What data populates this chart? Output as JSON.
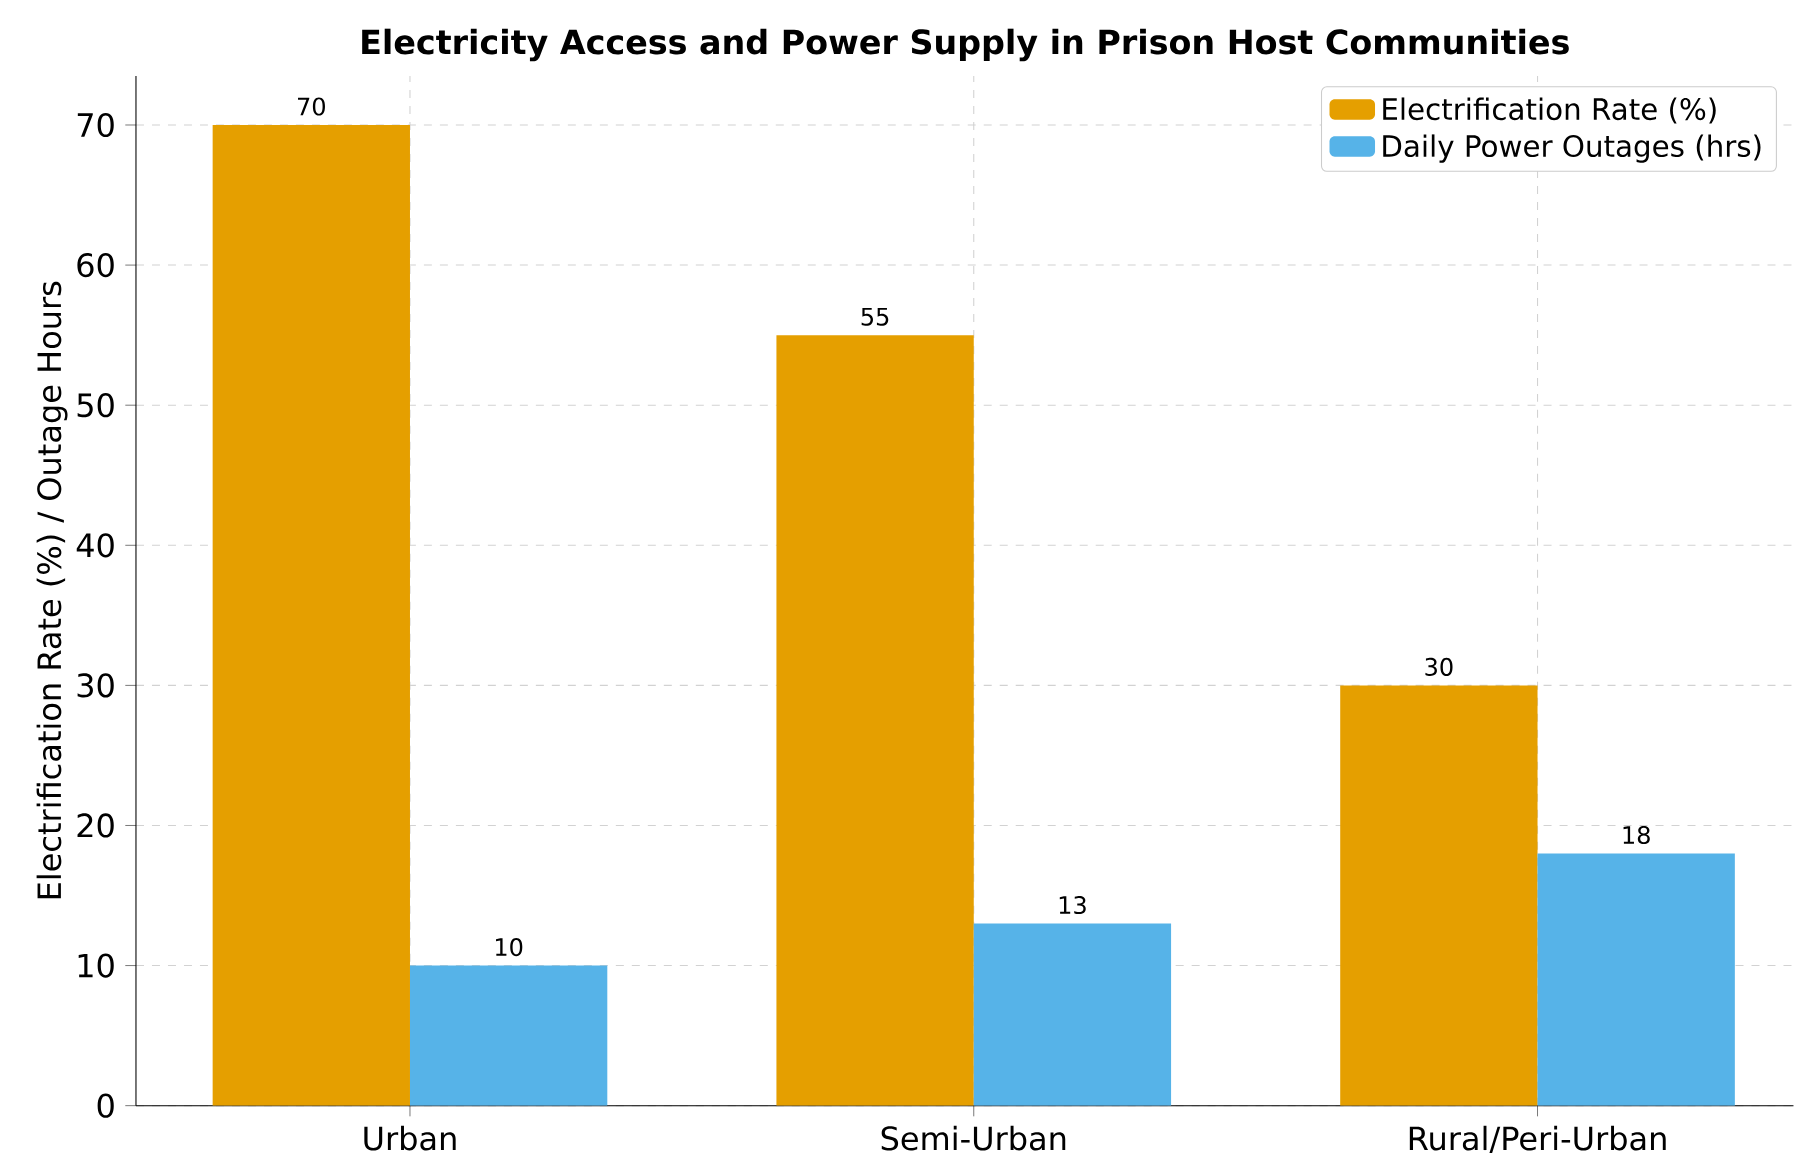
{
  "chart_data": {
    "type": "bar",
    "title": "Electricity Access and Power Supply in Prison Host Communities",
    "ylabel": "Electrification Rate (%) / Outage Hours",
    "categories": [
      "Urban",
      "Semi-Urban",
      "Rural/Peri-Urban"
    ],
    "series": [
      {
        "name": "Electrification Rate (%)",
        "color": "#e59f00",
        "values": [
          70,
          55,
          30
        ]
      },
      {
        "name": "Daily Power Outages (hrs)",
        "color": "#56b3e8",
        "values": [
          10,
          13,
          18
        ]
      }
    ],
    "ylim": [
      0,
      73.5
    ],
    "yticks": [
      0,
      10,
      20,
      30,
      40,
      50,
      60,
      70
    ],
    "grid": true,
    "legend": "top right",
    "data_labels": true
  }
}
